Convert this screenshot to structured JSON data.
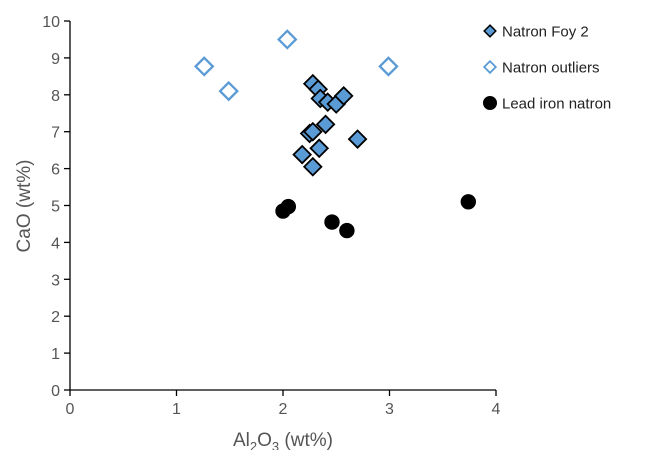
{
  "chart_data": {
    "type": "scatter",
    "xlabel": {
      "main": "Al",
      "sub1": "2",
      "mid": "O",
      "sub2": "3",
      "tail": " (wt%)"
    },
    "ylabel": "CaO (wt%)",
    "xlim": [
      0,
      4
    ],
    "ylim": [
      0,
      10
    ],
    "xticks": [
      "0",
      "1",
      "2",
      "3",
      "4"
    ],
    "yticks": [
      "0",
      "1",
      "2",
      "3",
      "4",
      "5",
      "6",
      "7",
      "8",
      "9",
      "10"
    ],
    "grid": false,
    "legend_position": "top-right",
    "series": [
      {
        "name": "Natron Foy 2",
        "marker": "diamond-filled",
        "fill": "#5b9bd5",
        "stroke": "#000000",
        "points": [
          [
            2.28,
            8.3
          ],
          [
            2.33,
            8.15
          ],
          [
            2.35,
            7.9
          ],
          [
            2.42,
            7.8
          ],
          [
            2.5,
            7.75
          ],
          [
            2.57,
            7.97
          ],
          [
            2.4,
            7.2
          ],
          [
            2.25,
            6.95
          ],
          [
            2.28,
            7.0
          ],
          [
            2.34,
            6.55
          ],
          [
            2.18,
            6.38
          ],
          [
            2.28,
            6.05
          ],
          [
            2.7,
            6.8
          ]
        ]
      },
      {
        "name": "Natron outliers",
        "marker": "diamond-open",
        "fill": "#ffffff",
        "stroke": "#5b9bd5",
        "points": [
          [
            1.26,
            8.77
          ],
          [
            1.49,
            8.1
          ],
          [
            2.04,
            9.5
          ],
          [
            2.99,
            8.77
          ]
        ]
      },
      {
        "name": "Lead iron natron",
        "marker": "circle",
        "fill": "#000000",
        "stroke": "#000000",
        "points": [
          [
            2.0,
            4.85
          ],
          [
            2.05,
            4.97
          ],
          [
            2.46,
            4.55
          ],
          [
            2.6,
            4.32
          ],
          [
            3.74,
            5.1
          ]
        ]
      }
    ]
  }
}
